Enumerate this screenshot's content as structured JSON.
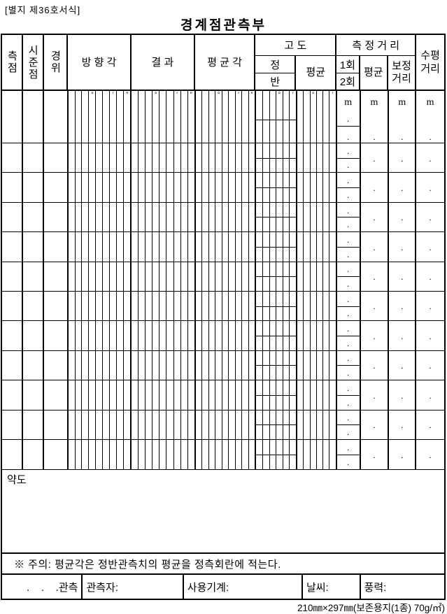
{
  "page": {
    "form_ref": "[별지 제36호서식]",
    "title": "경계점관측부",
    "caption": "210㎜×297㎜(보존용지(1종) 70g/㎡)"
  },
  "table": {
    "headers": {
      "station": "측점",
      "sight_point": "시준점",
      "theodolite": "경위",
      "direction_angle": "방 향 각",
      "result": "결 과",
      "mean_angle": "평 균 각",
      "altitude": "고 도",
      "altitude_fore": "정",
      "altitude_back": "반",
      "altitude_mean": "평균",
      "measured_distance": "측 정 거 리",
      "first_time": "1회",
      "second_time": "2회",
      "distance_mean": "평균",
      "corrected_distance": "보정거리",
      "horizontal_distance": "수평거리"
    },
    "symbols": {
      "deg": "°",
      "min": "′",
      "sec": "″"
    },
    "unit_m": "m",
    "dot": ".",
    "format": {
      "angle9": {
        "strips": 9,
        "marks": {
          "3": "deg",
          "6": "min",
          "8": "sec"
        }
      },
      "angle6_foreback": {
        "strips": 6,
        "marks": {
          "3": "deg",
          "5": "min"
        }
      },
      "angle6_mean": {
        "strips": 6,
        "marks": {
          "2": "deg",
          "5": "min"
        }
      }
    },
    "body_rows": 12
  },
  "sketch": {
    "label": "약도"
  },
  "note": {
    "text": "※ 주의: 평균각은 정반관측치의 평균을 정측회란에 적는다."
  },
  "footer": {
    "cells": [
      {
        "label": ".    .    .관측"
      },
      {
        "label": "관측자:"
      },
      {
        "label": "사용기계:"
      },
      {
        "label": "날씨:"
      },
      {
        "label": "풍력:"
      }
    ]
  }
}
